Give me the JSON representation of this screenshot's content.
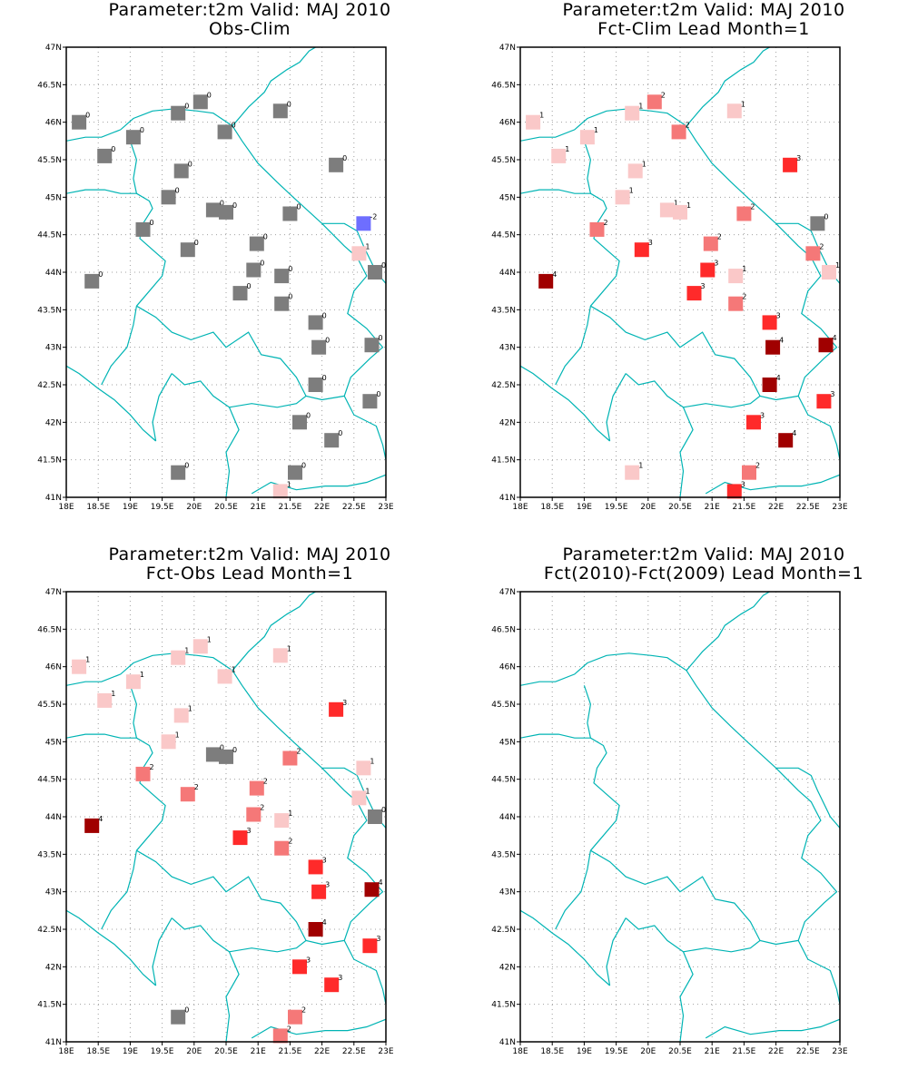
{
  "axes": {
    "lon_min": 18,
    "lon_max": 23,
    "lat_min": 41,
    "lat_max": 47,
    "xtick_labels": [
      "18E",
      "18.5E",
      "19E",
      "19.5E",
      "20E",
      "20.5E",
      "21E",
      "21.5E",
      "22E",
      "22.5E",
      "23E"
    ],
    "ytick_labels": [
      "41N",
      "41.5N",
      "42N",
      "42.5N",
      "43N",
      "43.5N",
      "44N",
      "44.5N",
      "45N",
      "45.5N",
      "46N",
      "46.5N",
      "47N"
    ],
    "grid": "dotted"
  },
  "colors": {
    "border_lines": "#00b4b4",
    "grid": "#a0a0a0",
    "value_-2": "#6e6eff",
    "value_0": "#7d7d7d",
    "value_1": "#fac8c8",
    "value_2": "#f57878",
    "value_3": "#ff2a2a",
    "value_4": "#a00000"
  },
  "panels": [
    {
      "title_line1": "Parameter:t2m Valid: MAJ 2010",
      "title_line2": "Obs-Clim",
      "stations": [
        {
          "lon": 18.2,
          "lat": 46.0,
          "v": "0"
        },
        {
          "lon": 18.6,
          "lat": 45.55,
          "v": "0"
        },
        {
          "lon": 19.05,
          "lat": 45.8,
          "v": "0"
        },
        {
          "lon": 19.75,
          "lat": 46.12,
          "v": "0"
        },
        {
          "lon": 20.1,
          "lat": 46.27,
          "v": "0"
        },
        {
          "lon": 20.48,
          "lat": 45.87,
          "v": "0"
        },
        {
          "lon": 21.35,
          "lat": 46.15,
          "v": "0"
        },
        {
          "lon": 19.8,
          "lat": 45.35,
          "v": "0"
        },
        {
          "lon": 19.6,
          "lat": 45.0,
          "v": "0"
        },
        {
          "lon": 20.3,
          "lat": 44.83,
          "v": "0"
        },
        {
          "lon": 20.5,
          "lat": 44.8,
          "v": "0"
        },
        {
          "lon": 21.5,
          "lat": 44.78,
          "v": "0"
        },
        {
          "lon": 22.22,
          "lat": 45.43,
          "v": "0"
        },
        {
          "lon": 22.65,
          "lat": 44.65,
          "v": "-2"
        },
        {
          "lon": 19.2,
          "lat": 44.57,
          "v": "0"
        },
        {
          "lon": 19.9,
          "lat": 44.3,
          "v": "0"
        },
        {
          "lon": 20.98,
          "lat": 44.38,
          "v": "0"
        },
        {
          "lon": 20.93,
          "lat": 44.03,
          "v": "0"
        },
        {
          "lon": 21.37,
          "lat": 43.95,
          "v": "0"
        },
        {
          "lon": 20.72,
          "lat": 43.72,
          "v": "0"
        },
        {
          "lon": 21.37,
          "lat": 43.58,
          "v": "0"
        },
        {
          "lon": 18.4,
          "lat": 43.88,
          "v": "0"
        },
        {
          "lon": 22.58,
          "lat": 44.25,
          "v": "1"
        },
        {
          "lon": 22.83,
          "lat": 44.0,
          "v": "0"
        },
        {
          "lon": 21.9,
          "lat": 43.33,
          "v": "0"
        },
        {
          "lon": 21.95,
          "lat": 43.0,
          "v": "0"
        },
        {
          "lon": 22.78,
          "lat": 43.03,
          "v": "0"
        },
        {
          "lon": 21.9,
          "lat": 42.5,
          "v": "0"
        },
        {
          "lon": 22.75,
          "lat": 42.28,
          "v": "0"
        },
        {
          "lon": 21.65,
          "lat": 42.0,
          "v": "0"
        },
        {
          "lon": 22.15,
          "lat": 41.76,
          "v": "0"
        },
        {
          "lon": 19.75,
          "lat": 41.33,
          "v": "0"
        },
        {
          "lon": 21.58,
          "lat": 41.33,
          "v": "0"
        },
        {
          "lon": 21.35,
          "lat": 41.08,
          "v": "1"
        }
      ]
    },
    {
      "title_line1": "Parameter:t2m Valid: MAJ 2010",
      "title_line2": "Fct-Clim Lead Month=1",
      "stations": [
        {
          "lon": 18.2,
          "lat": 46.0,
          "v": "1"
        },
        {
          "lon": 18.6,
          "lat": 45.55,
          "v": "1"
        },
        {
          "lon": 19.05,
          "lat": 45.8,
          "v": "1"
        },
        {
          "lon": 19.75,
          "lat": 46.12,
          "v": "1"
        },
        {
          "lon": 20.1,
          "lat": 46.27,
          "v": "2"
        },
        {
          "lon": 20.48,
          "lat": 45.87,
          "v": "2"
        },
        {
          "lon": 21.35,
          "lat": 46.15,
          "v": "1"
        },
        {
          "lon": 19.8,
          "lat": 45.35,
          "v": "1"
        },
        {
          "lon": 19.6,
          "lat": 45.0,
          "v": "1"
        },
        {
          "lon": 20.3,
          "lat": 44.83,
          "v": "1"
        },
        {
          "lon": 20.5,
          "lat": 44.8,
          "v": "1"
        },
        {
          "lon": 21.5,
          "lat": 44.78,
          "v": "2"
        },
        {
          "lon": 22.22,
          "lat": 45.43,
          "v": "3"
        },
        {
          "lon": 22.65,
          "lat": 44.65,
          "v": "0"
        },
        {
          "lon": 19.2,
          "lat": 44.57,
          "v": "2"
        },
        {
          "lon": 19.9,
          "lat": 44.3,
          "v": "3"
        },
        {
          "lon": 20.98,
          "lat": 44.38,
          "v": "2"
        },
        {
          "lon": 20.93,
          "lat": 44.03,
          "v": "3"
        },
        {
          "lon": 21.37,
          "lat": 43.95,
          "v": "1"
        },
        {
          "lon": 20.72,
          "lat": 43.72,
          "v": "3"
        },
        {
          "lon": 21.37,
          "lat": 43.58,
          "v": "2"
        },
        {
          "lon": 18.4,
          "lat": 43.88,
          "v": "4"
        },
        {
          "lon": 22.58,
          "lat": 44.25,
          "v": "2"
        },
        {
          "lon": 22.83,
          "lat": 44.0,
          "v": "1"
        },
        {
          "lon": 21.9,
          "lat": 43.33,
          "v": "3"
        },
        {
          "lon": 21.95,
          "lat": 43.0,
          "v": "4"
        },
        {
          "lon": 22.78,
          "lat": 43.03,
          "v": "4"
        },
        {
          "lon": 21.9,
          "lat": 42.5,
          "v": "4"
        },
        {
          "lon": 22.75,
          "lat": 42.28,
          "v": "3"
        },
        {
          "lon": 21.65,
          "lat": 42.0,
          "v": "3"
        },
        {
          "lon": 22.15,
          "lat": 41.76,
          "v": "4"
        },
        {
          "lon": 19.75,
          "lat": 41.33,
          "v": "1"
        },
        {
          "lon": 21.58,
          "lat": 41.33,
          "v": "2"
        },
        {
          "lon": 21.35,
          "lat": 41.08,
          "v": "3"
        }
      ]
    },
    {
      "title_line1": "Parameter:t2m Valid: MAJ 2010",
      "title_line2": "Fct-Obs Lead Month=1",
      "stations": [
        {
          "lon": 18.2,
          "lat": 46.0,
          "v": "1"
        },
        {
          "lon": 18.6,
          "lat": 45.55,
          "v": "1"
        },
        {
          "lon": 19.05,
          "lat": 45.8,
          "v": "1"
        },
        {
          "lon": 19.75,
          "lat": 46.12,
          "v": "1"
        },
        {
          "lon": 20.1,
          "lat": 46.27,
          "v": "1"
        },
        {
          "lon": 20.48,
          "lat": 45.87,
          "v": "1"
        },
        {
          "lon": 21.35,
          "lat": 46.15,
          "v": "1"
        },
        {
          "lon": 19.8,
          "lat": 45.35,
          "v": "1"
        },
        {
          "lon": 19.6,
          "lat": 45.0,
          "v": "1"
        },
        {
          "lon": 20.3,
          "lat": 44.83,
          "v": "0"
        },
        {
          "lon": 20.5,
          "lat": 44.8,
          "v": "0"
        },
        {
          "lon": 21.5,
          "lat": 44.78,
          "v": "2"
        },
        {
          "lon": 22.22,
          "lat": 45.43,
          "v": "3"
        },
        {
          "lon": 22.65,
          "lat": 44.65,
          "v": "1"
        },
        {
          "lon": 19.2,
          "lat": 44.57,
          "v": "2"
        },
        {
          "lon": 19.9,
          "lat": 44.3,
          "v": "2"
        },
        {
          "lon": 20.98,
          "lat": 44.38,
          "v": "2"
        },
        {
          "lon": 20.93,
          "lat": 44.03,
          "v": "2"
        },
        {
          "lon": 21.37,
          "lat": 43.95,
          "v": "1"
        },
        {
          "lon": 20.72,
          "lat": 43.72,
          "v": "3"
        },
        {
          "lon": 21.37,
          "lat": 43.58,
          "v": "2"
        },
        {
          "lon": 18.4,
          "lat": 43.88,
          "v": "4"
        },
        {
          "lon": 22.58,
          "lat": 44.25,
          "v": "1"
        },
        {
          "lon": 22.83,
          "lat": 44.0,
          "v": "0"
        },
        {
          "lon": 21.9,
          "lat": 43.33,
          "v": "3"
        },
        {
          "lon": 21.95,
          "lat": 43.0,
          "v": "3"
        },
        {
          "lon": 22.78,
          "lat": 43.03,
          "v": "4"
        },
        {
          "lon": 21.9,
          "lat": 42.5,
          "v": "4"
        },
        {
          "lon": 22.75,
          "lat": 42.28,
          "v": "3"
        },
        {
          "lon": 21.65,
          "lat": 42.0,
          "v": "3"
        },
        {
          "lon": 22.15,
          "lat": 41.76,
          "v": "3"
        },
        {
          "lon": 19.75,
          "lat": 41.33,
          "v": "0"
        },
        {
          "lon": 21.58,
          "lat": 41.33,
          "v": "2"
        },
        {
          "lon": 21.35,
          "lat": 41.08,
          "v": "2"
        }
      ]
    },
    {
      "title_line1": "Parameter:t2m Valid: MAJ 2010",
      "title_line2": "Fct(2010)-Fct(2009) Lead Month=1",
      "stations": []
    }
  ]
}
